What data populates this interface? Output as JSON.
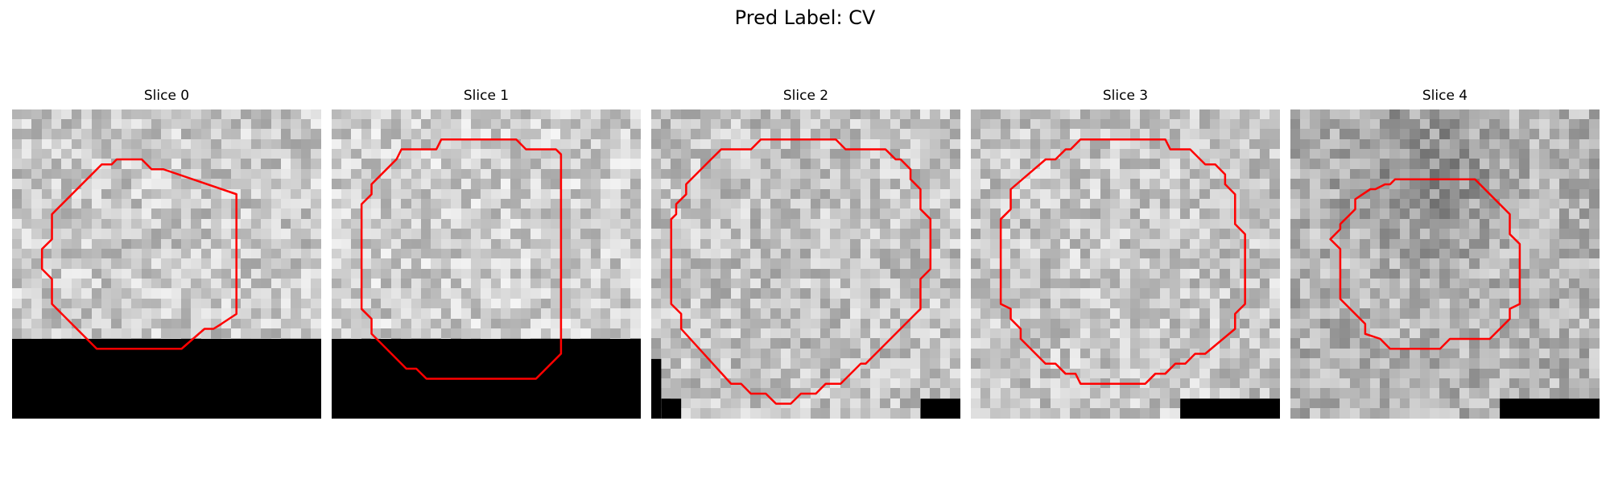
{
  "figure": {
    "title": "Pred Label: CV"
  },
  "panels": [
    {
      "title": "Slice 0"
    },
    {
      "title": "Slice 1"
    },
    {
      "title": "Slice 2"
    },
    {
      "title": "Slice 3"
    },
    {
      "title": "Slice 4"
    }
  ],
  "colors": {
    "contour": "#ff0000",
    "mask": "#000000"
  }
}
